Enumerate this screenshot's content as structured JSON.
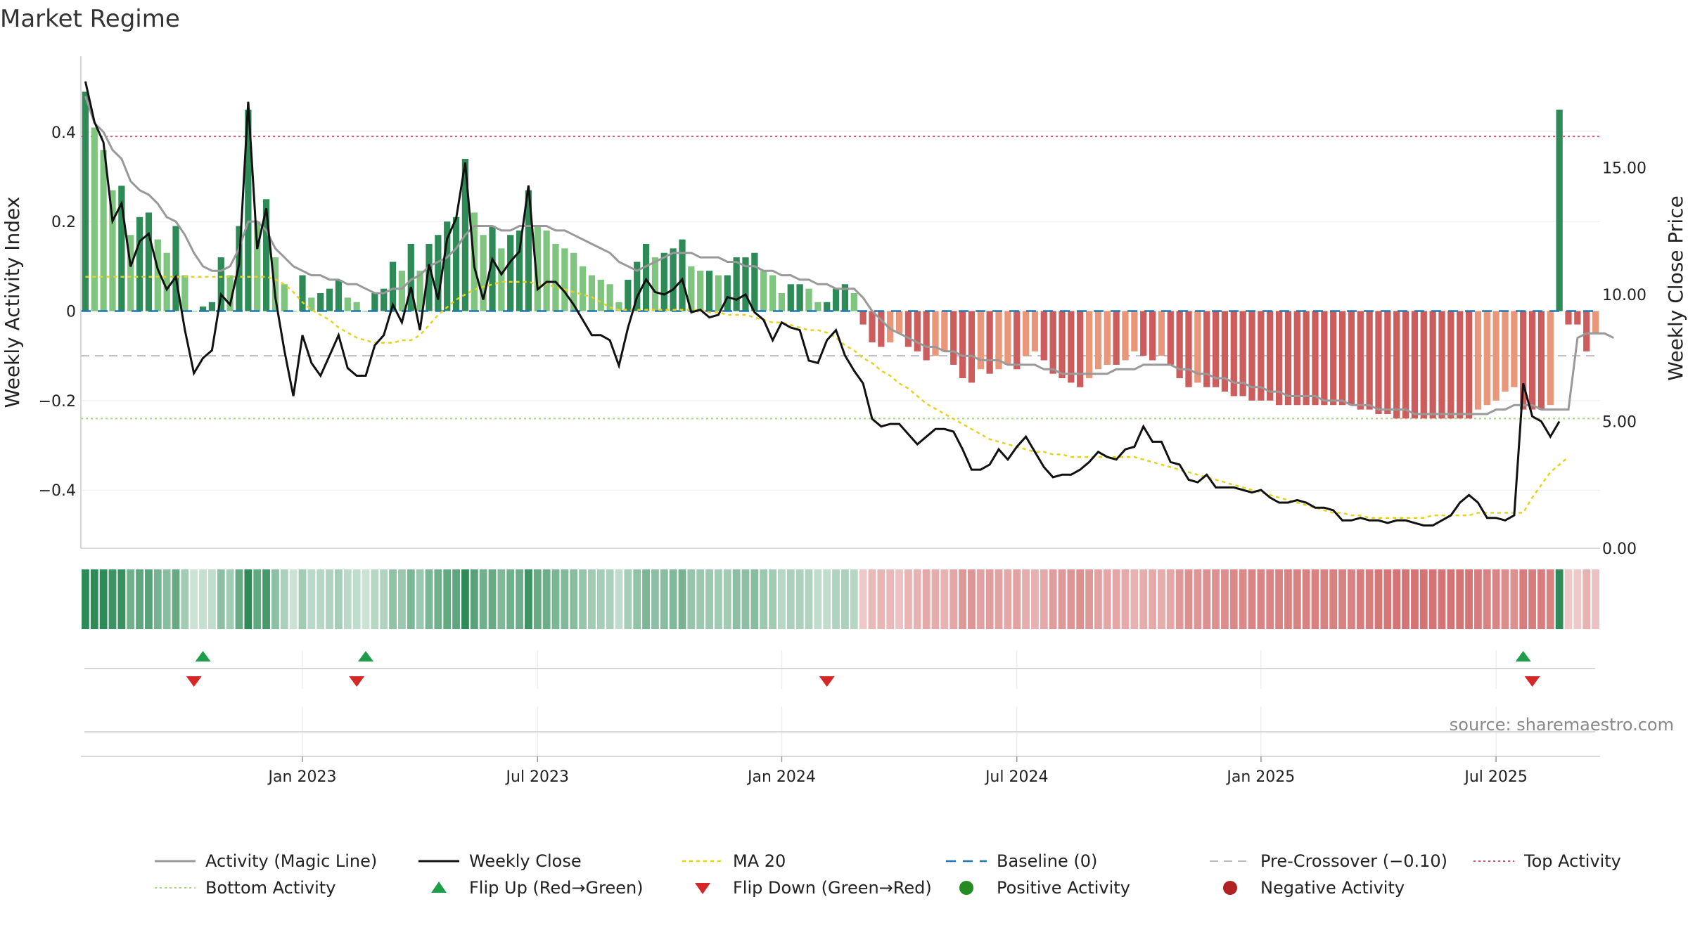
{
  "colors": {
    "pos_strong": "#2e8b57",
    "pos_light": "#7fc47f",
    "neg_strong": "#cd5c5c",
    "neg_light": "#e9967a",
    "magic_line": "#999999",
    "close_line": "#111111",
    "ma20": "#e6d21a",
    "baseline": "#1f77b4",
    "pre_cross": "#bbbbbb",
    "top": "#d9536b",
    "bottom": "#a8d880",
    "flip_up": "#1e9e4a",
    "flip_down": "#d62728",
    "pos_dot": "#228b22",
    "neg_dot": "#b22222"
  },
  "chart_data": {
    "type": "bar",
    "title": "Market Regime",
    "source": "source: sharemaestro.com",
    "left_axis": {
      "label": "Weekly Activity Index",
      "ylim": [
        -0.53,
        0.53
      ],
      "ticks": [
        {
          "v": 0.4,
          "t": "0.4"
        },
        {
          "v": 0.2,
          "t": "0.2"
        },
        {
          "v": 0,
          "t": "0"
        },
        {
          "v": -0.2,
          "t": "−0.2"
        },
        {
          "v": -0.4,
          "t": "−0.4"
        }
      ]
    },
    "right_axis": {
      "label": "Weekly Close Price",
      "ylim": [
        0,
        18.7
      ],
      "ticks": [
        {
          "v": 15,
          "t": "15.00"
        },
        {
          "v": 10,
          "t": "10.00"
        },
        {
          "v": 5,
          "t": "5.00"
        },
        {
          "v": 0,
          "t": "0.00"
        }
      ]
    },
    "x_ticks": [
      {
        "i": 24,
        "t": "Jan 2023"
      },
      {
        "i": 50,
        "t": "Jul 2023"
      },
      {
        "i": 77,
        "t": "Jan 2024"
      },
      {
        "i": 103,
        "t": "Jul 2024"
      },
      {
        "i": 130,
        "t": "Jan 2025"
      },
      {
        "i": 156,
        "t": "Jul 2025"
      }
    ],
    "reference_lines": {
      "top": 0.39,
      "pre_crossover": -0.1,
      "baseline": 0,
      "bottom": -0.24
    },
    "activity": [
      0.49,
      0.41,
      0.36,
      0.27,
      0.28,
      0.17,
      0.21,
      0.22,
      0.16,
      0.13,
      0.19,
      0.08,
      0.0,
      0.01,
      0.02,
      0.12,
      0.08,
      0.19,
      0.45,
      0.2,
      0.25,
      0.12,
      0.06,
      0.0,
      0.08,
      0.03,
      0.04,
      0.05,
      0.07,
      0.03,
      0.02,
      0.0,
      0.04,
      0.05,
      0.11,
      0.09,
      0.15,
      0.09,
      0.15,
      0.17,
      0.2,
      0.21,
      0.34,
      0.22,
      0.17,
      0.19,
      0.14,
      0.17,
      0.18,
      0.27,
      0.19,
      0.18,
      0.15,
      0.14,
      0.13,
      0.1,
      0.08,
      0.07,
      0.06,
      0.02,
      0.07,
      0.11,
      0.15,
      0.12,
      0.13,
      0.14,
      0.16,
      0.1,
      0.09,
      0.09,
      0.08,
      0.08,
      0.12,
      0.12,
      0.13,
      0.09,
      0.08,
      0.04,
      0.06,
      0.06,
      0.05,
      0.02,
      0.02,
      0.05,
      0.06,
      0.04,
      -0.03,
      -0.07,
      -0.08,
      -0.07,
      -0.05,
      -0.08,
      -0.09,
      -0.11,
      -0.1,
      -0.09,
      -0.12,
      -0.15,
      -0.16,
      -0.13,
      -0.14,
      -0.13,
      -0.12,
      -0.13,
      -0.1,
      -0.09,
      -0.11,
      -0.14,
      -0.15,
      -0.16,
      -0.17,
      -0.15,
      -0.13,
      -0.12,
      -0.12,
      -0.11,
      -0.09,
      -0.1,
      -0.11,
      -0.1,
      -0.12,
      -0.15,
      -0.17,
      -0.16,
      -0.17,
      -0.17,
      -0.18,
      -0.19,
      -0.19,
      -0.2,
      -0.2,
      -0.2,
      -0.21,
      -0.21,
      -0.21,
      -0.21,
      -0.21,
      -0.21,
      -0.21,
      -0.21,
      -0.21,
      -0.22,
      -0.22,
      -0.23,
      -0.23,
      -0.24,
      -0.24,
      -0.24,
      -0.24,
      -0.24,
      -0.24,
      -0.24,
      -0.24,
      -0.24,
      -0.22,
      -0.21,
      -0.2,
      -0.18,
      -0.17,
      -0.22,
      -0.22,
      -0.22,
      -0.21,
      0.45,
      -0.03,
      -0.03,
      -0.09,
      -0.05
    ],
    "magic_line": [
      0.48,
      0.42,
      0.4,
      0.36,
      0.34,
      0.29,
      0.27,
      0.26,
      0.24,
      0.21,
      0.2,
      0.17,
      0.13,
      0.1,
      0.09,
      0.09,
      0.1,
      0.14,
      0.2,
      0.2,
      0.18,
      0.14,
      0.12,
      0.1,
      0.09,
      0.08,
      0.08,
      0.07,
      0.07,
      0.06,
      0.06,
      0.05,
      0.04,
      0.04,
      0.05,
      0.05,
      0.07,
      0.08,
      0.1,
      0.11,
      0.12,
      0.14,
      0.17,
      0.19,
      0.19,
      0.19,
      0.18,
      0.18,
      0.19,
      0.19,
      0.19,
      0.19,
      0.18,
      0.18,
      0.17,
      0.16,
      0.15,
      0.14,
      0.13,
      0.11,
      0.1,
      0.09,
      0.1,
      0.11,
      0.12,
      0.13,
      0.13,
      0.13,
      0.12,
      0.12,
      0.12,
      0.11,
      0.11,
      0.1,
      0.1,
      0.09,
      0.09,
      0.08,
      0.08,
      0.07,
      0.07,
      0.06,
      0.06,
      0.05,
      0.05,
      0.05,
      0.03,
      0.0,
      -0.02,
      -0.04,
      -0.05,
      -0.06,
      -0.07,
      -0.08,
      -0.08,
      -0.09,
      -0.09,
      -0.1,
      -0.1,
      -0.11,
      -0.11,
      -0.11,
      -0.12,
      -0.12,
      -0.12,
      -0.12,
      -0.13,
      -0.13,
      -0.14,
      -0.14,
      -0.14,
      -0.14,
      -0.14,
      -0.14,
      -0.13,
      -0.13,
      -0.13,
      -0.12,
      -0.12,
      -0.12,
      -0.12,
      -0.13,
      -0.13,
      -0.14,
      -0.14,
      -0.15,
      -0.15,
      -0.16,
      -0.16,
      -0.17,
      -0.17,
      -0.18,
      -0.18,
      -0.19,
      -0.19,
      -0.19,
      -0.19,
      -0.2,
      -0.2,
      -0.2,
      -0.21,
      -0.21,
      -0.21,
      -0.22,
      -0.22,
      -0.22,
      -0.22,
      -0.23,
      -0.23,
      -0.23,
      -0.23,
      -0.23,
      -0.23,
      -0.23,
      -0.23,
      -0.23,
      -0.22,
      -0.22,
      -0.21,
      -0.21,
      -0.21,
      -0.22,
      -0.22,
      -0.22,
      -0.22,
      -0.06,
      -0.05,
      -0.05,
      -0.05,
      -0.06
    ],
    "weekly_close": [
      18.4,
      16.8,
      16.0,
      12.9,
      13.6,
      11.1,
      12.1,
      12.4,
      11.0,
      10.2,
      10.7,
      8.6,
      6.9,
      7.5,
      7.8,
      10.0,
      9.6,
      11.2,
      17.6,
      11.8,
      13.4,
      9.9,
      7.8,
      6.0,
      8.4,
      7.3,
      6.8,
      7.6,
      8.4,
      7.1,
      6.8,
      6.8,
      8.0,
      8.4,
      9.6,
      8.9,
      10.3,
      8.6,
      11.2,
      9.8,
      12.2,
      13.0,
      15.2,
      11.1,
      9.8,
      11.4,
      10.8,
      11.3,
      11.7,
      14.3,
      10.2,
      10.5,
      10.5,
      10.1,
      9.6,
      9.0,
      8.4,
      8.4,
      8.2,
      7.2,
      8.7,
      9.9,
      10.6,
      10.1,
      10.0,
      10.2,
      10.6,
      9.3,
      9.4,
      9.1,
      9.2,
      9.9,
      9.8,
      10.0,
      9.3,
      9.0,
      8.2,
      8.9,
      8.7,
      8.6,
      7.4,
      7.3,
      8.2,
      8.6,
      7.6,
      7.0,
      6.5,
      5.1,
      4.8,
      4.9,
      4.9,
      4.5,
      4.1,
      4.4,
      4.7,
      4.7,
      4.6,
      3.9,
      3.1,
      3.1,
      3.3,
      3.9,
      3.5,
      4.0,
      4.4,
      3.8,
      3.2,
      2.8,
      2.9,
      2.9,
      3.1,
      3.4,
      3.8,
      3.6,
      3.5,
      3.9,
      4.0,
      4.8,
      4.2,
      4.2,
      3.4,
      3.3,
      2.7,
      2.6,
      2.9,
      2.4,
      2.4,
      2.4,
      2.3,
      2.2,
      2.3,
      2.0,
      1.8,
      1.8,
      1.9,
      1.8,
      1.6,
      1.6,
      1.5,
      1.1,
      1.1,
      1.2,
      1.1,
      1.1,
      1.0,
      1.1,
      1.1,
      1.0,
      0.9,
      0.9,
      1.1,
      1.3,
      1.8,
      2.1,
      1.8,
      1.2,
      1.2,
      1.1,
      1.3,
      6.5,
      5.2,
      5.0,
      4.4,
      5.0
    ],
    "ma20": [
      10.7,
      10.7,
      10.7,
      10.7,
      10.7,
      10.7,
      10.7,
      10.7,
      10.7,
      10.7,
      10.7,
      10.7,
      10.7,
      10.7,
      10.7,
      10.7,
      10.7,
      10.7,
      10.7,
      10.7,
      10.7,
      10.6,
      10.4,
      10.1,
      9.7,
      9.4,
      9.2,
      9.0,
      8.7,
      8.5,
      8.3,
      8.2,
      8.1,
      8.1,
      8.1,
      8.2,
      8.2,
      8.4,
      8.8,
      9.2,
      9.5,
      9.8,
      10.0,
      10.2,
      10.3,
      10.4,
      10.5,
      10.5,
      10.5,
      10.5,
      10.4,
      10.4,
      10.3,
      10.2,
      10.1,
      10.0,
      9.9,
      9.7,
      9.5,
      9.4,
      9.4,
      9.4,
      9.4,
      9.4,
      9.4,
      9.4,
      9.4,
      9.4,
      9.4,
      9.3,
      9.3,
      9.2,
      9.2,
      9.2,
      9.1,
      9.0,
      8.9,
      8.9,
      8.8,
      8.7,
      8.6,
      8.6,
      8.5,
      8.3,
      8.0,
      7.8,
      7.5,
      7.3,
      7.0,
      6.8,
      6.5,
      6.3,
      6.0,
      5.7,
      5.5,
      5.3,
      5.1,
      4.9,
      4.7,
      4.5,
      4.3,
      4.2,
      4.1,
      4.0,
      3.9,
      3.8,
      3.8,
      3.7,
      3.7,
      3.6,
      3.6,
      3.6,
      3.6,
      3.6,
      3.6,
      3.6,
      3.6,
      3.5,
      3.4,
      3.3,
      3.2,
      3.1,
      3.0,
      2.9,
      2.8,
      2.7,
      2.6,
      2.5,
      2.4,
      2.3,
      2.2,
      2.1,
      2.0,
      1.9,
      1.8,
      1.7,
      1.6,
      1.5,
      1.4,
      1.4,
      1.3,
      1.3,
      1.2,
      1.2,
      1.2,
      1.2,
      1.2,
      1.2,
      1.2,
      1.3,
      1.3,
      1.3,
      1.3,
      1.3,
      1.4,
      1.4,
      1.4,
      1.4,
      1.4,
      1.4,
      2.0,
      2.5,
      3.0,
      3.3,
      3.6
    ],
    "flip_up": [
      13,
      31,
      159
    ],
    "flip_down": [
      12,
      30,
      82,
      160
    ],
    "legend": [
      {
        "key": "magic",
        "label": "Activity (Magic Line)"
      },
      {
        "key": "close",
        "label": "Weekly Close"
      },
      {
        "key": "ma20",
        "label": "MA 20"
      },
      {
        "key": "baseline",
        "label": "Baseline (0)"
      },
      {
        "key": "pre",
        "label": "Pre-Crossover (−0.10)"
      },
      {
        "key": "top",
        "label": "Top Activity"
      },
      {
        "key": "bottom",
        "label": "Bottom Activity"
      },
      {
        "key": "flipup",
        "label": "Flip Up (Red→Green)"
      },
      {
        "key": "flipdown",
        "label": "Flip Down (Green→Red)"
      },
      {
        "key": "posdot",
        "label": "Positive Activity"
      },
      {
        "key": "negdot",
        "label": "Negative Activity"
      }
    ]
  }
}
